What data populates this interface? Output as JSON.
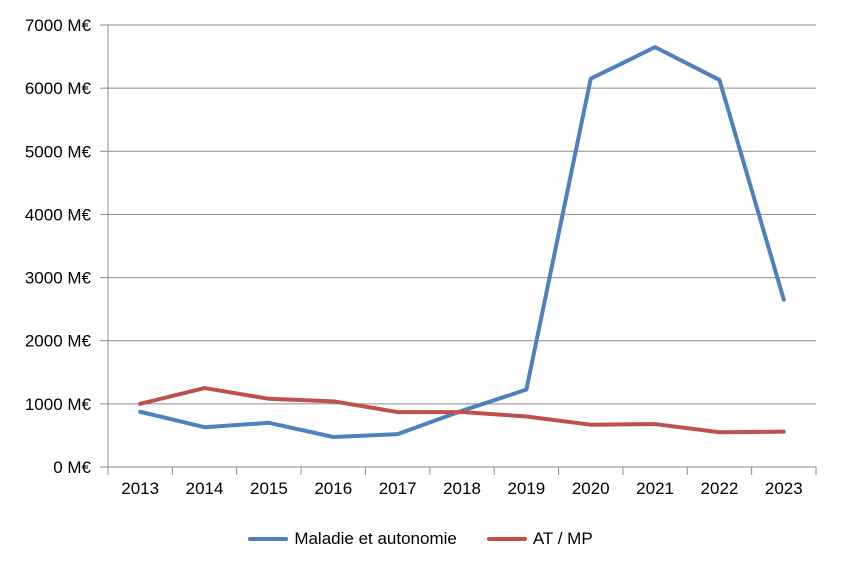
{
  "chart_data": {
    "type": "line",
    "title": "",
    "xlabel": "",
    "ylabel": "",
    "categories": [
      "2013",
      "2014",
      "2015",
      "2016",
      "2017",
      "2018",
      "2019",
      "2020",
      "2021",
      "2022",
      "2023"
    ],
    "series": [
      {
        "name": "Maladie et autonomie",
        "color": "#4F81BD",
        "values": [
          875,
          630,
          700,
          475,
          520,
          890,
          1225,
          6150,
          6650,
          6130,
          2650
        ]
      },
      {
        "name": "AT / MP",
        "color": "#C0504D",
        "values": [
          1000,
          1250,
          1080,
          1040,
          870,
          870,
          800,
          670,
          680,
          550,
          560
        ]
      }
    ],
    "ylim": [
      0,
      7000
    ],
    "y_ticks": [
      {
        "value": 0,
        "label": "0 M€"
      },
      {
        "value": 1000,
        "label": "1000 M€"
      },
      {
        "value": 2000,
        "label": "2000 M€"
      },
      {
        "value": 3000,
        "label": "3000 M€"
      },
      {
        "value": 4000,
        "label": "4000 M€"
      },
      {
        "value": 5000,
        "label": "5000 M€"
      },
      {
        "value": 6000,
        "label": "6000 M€"
      },
      {
        "value": 7000,
        "label": "7000 M€"
      }
    ],
    "grid": true,
    "legend_position": "bottom",
    "grid_color": "#8C8C8C",
    "text_color": "#000000",
    "line_width": 4
  }
}
